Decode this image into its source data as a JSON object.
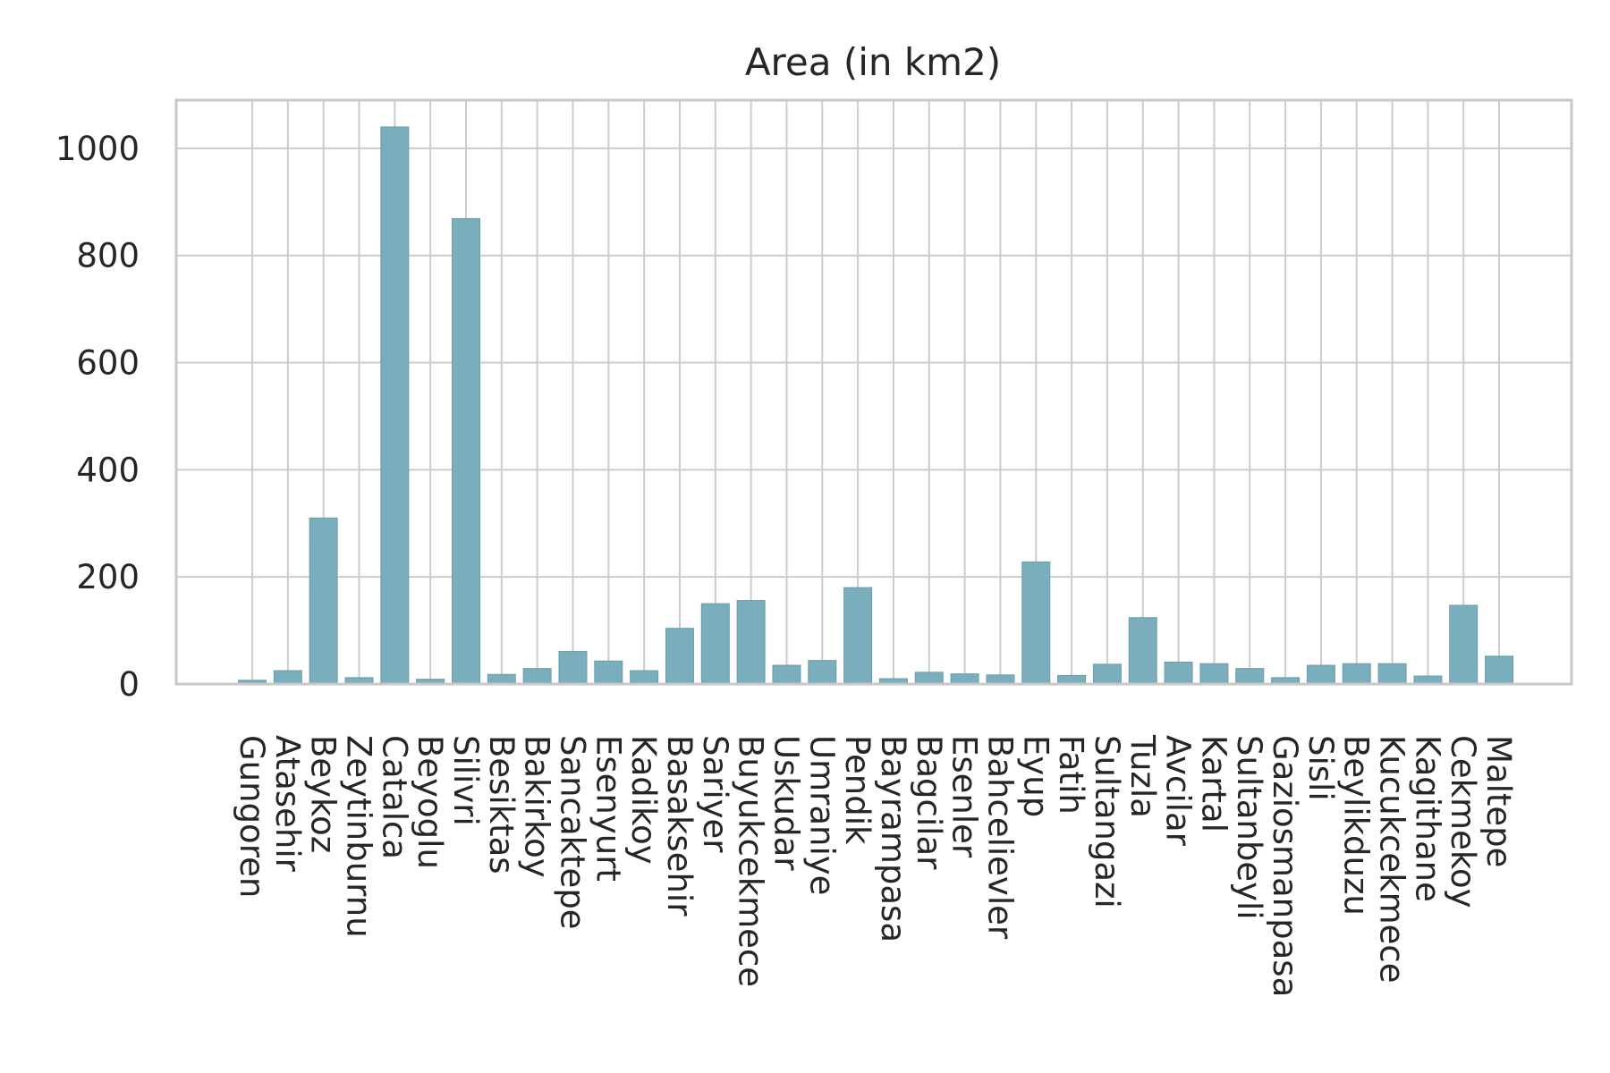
{
  "chart_data": {
    "type": "bar",
    "title": "Area (in km2)",
    "xlabel": "",
    "ylabel": "",
    "ylim": [
      0,
      1090
    ],
    "yticks": [
      0,
      200,
      400,
      600,
      800,
      1000
    ],
    "grid": true,
    "bar_color": "#7aaebc",
    "categories": [
      "Gungoren",
      "Atasehir",
      "Beykoz",
      "Zeytinburnu",
      "Catalca",
      "Beyoglu",
      "Silivri",
      "Besiktas",
      "Bakirkoy",
      "Sancaktepe",
      "Esenyurt",
      "Kadikoy",
      "Basaksehir",
      "Sariyer",
      "Buyukcekmece",
      "Uskudar",
      "Umraniye",
      "Pendik",
      "Bayrampasa",
      "Bagcilar",
      "Esenler",
      "Bahcelievler",
      "Eyup",
      "Fatih",
      "Sultangazi",
      "Tuzla",
      "Avcilar",
      "Kartal",
      "Sultanbeyli",
      "Gaziosmanpasa",
      "Sisli",
      "Beylikduzu",
      "Kucukcekmece",
      "Kagithane",
      "Cekmekoy",
      "Maltepe"
    ],
    "values": [
      7,
      25,
      310,
      12,
      1040,
      9,
      869,
      18,
      29,
      61,
      43,
      25,
      104,
      150,
      156,
      35,
      44,
      180,
      10,
      22,
      19,
      17,
      228,
      16,
      37,
      124,
      41,
      38,
      29,
      12,
      35,
      38,
      38,
      15,
      147,
      52
    ]
  }
}
